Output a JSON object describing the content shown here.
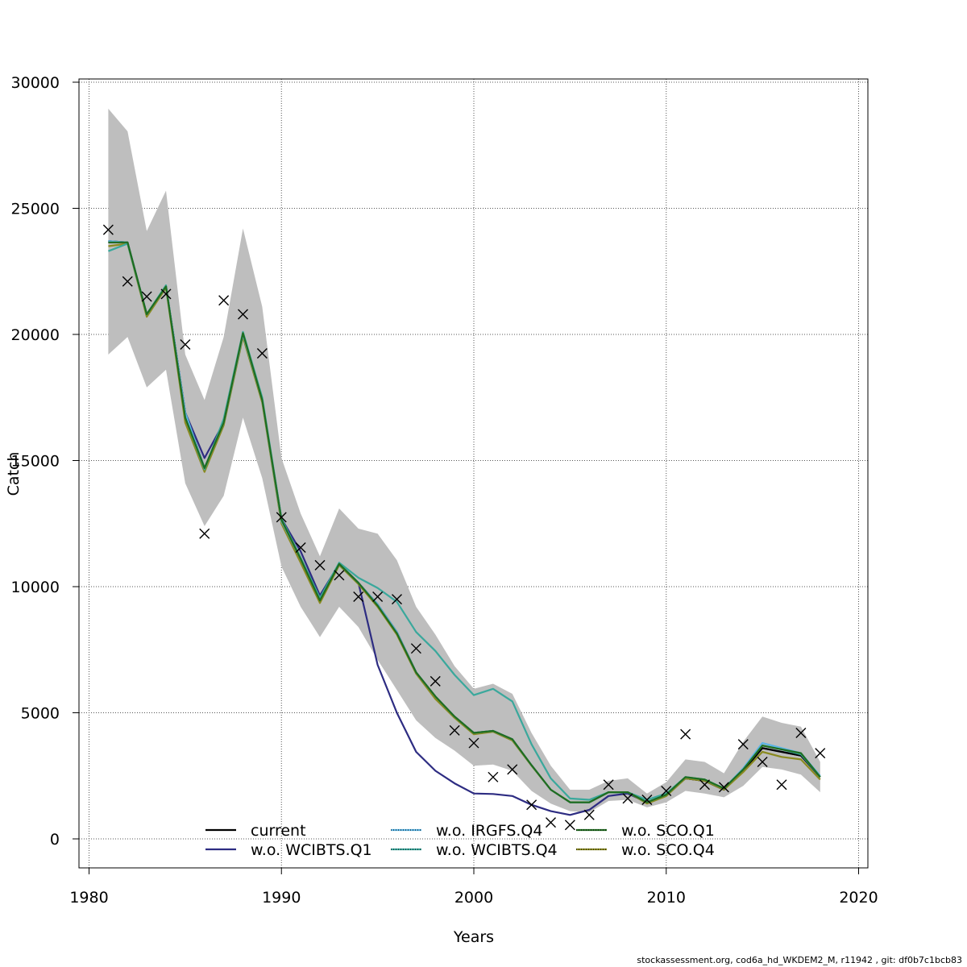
{
  "chart_data": {
    "type": "line",
    "title": "",
    "xlabel": "Years",
    "ylabel": "Catch",
    "xlim": [
      1980,
      2020
    ],
    "ylim": [
      0,
      30000
    ],
    "xticks": [
      1980,
      1990,
      2000,
      2010,
      2020
    ],
    "yticks": [
      0,
      5000,
      10000,
      15000,
      20000,
      25000,
      30000
    ],
    "grid": true,
    "legend_placement": "bottom",
    "x": [
      1981,
      1982,
      1983,
      1984,
      1985,
      1986,
      1987,
      1988,
      1989,
      1990,
      1991,
      1992,
      1993,
      1994,
      1995,
      1996,
      1997,
      1998,
      1999,
      2000,
      2001,
      2002,
      2003,
      2004,
      2005,
      2006,
      2007,
      2008,
      2009,
      2010,
      2011,
      2012,
      2013,
      2014,
      2015,
      2016,
      2017,
      2018
    ],
    "confidence_band": {
      "color": "#bebebe",
      "lower": [
        19200,
        19900,
        17900,
        18600,
        14100,
        12400,
        13600,
        16700,
        14300,
        10800,
        9200,
        8000,
        9200,
        8400,
        7100,
        5900,
        4700,
        4000,
        3500,
        2900,
        2950,
        2700,
        1900,
        1400,
        1100,
        1050,
        1500,
        1550,
        1250,
        1450,
        1900,
        1800,
        1650,
        2100,
        2850,
        2750,
        2550,
        1850
      ],
      "upper": [
        28950,
        28050,
        24100,
        25700,
        19200,
        17400,
        19900,
        24200,
        21100,
        15100,
        12900,
        11200,
        13100,
        12300,
        12100,
        11050,
        9200,
        8100,
        6850,
        5950,
        6150,
        5750,
        4200,
        2900,
        1950,
        1950,
        2300,
        2400,
        1800,
        2250,
        3150,
        3050,
        2600,
        3850,
        4850,
        4600,
        4450,
        3050
      ]
    },
    "series": [
      {
        "name": "current",
        "color": "#000000",
        "dash": "solid",
        "values": [
          23700,
          23650,
          20800,
          21900,
          16900,
          14700,
          16500,
          20000,
          17400,
          12600,
          11100,
          9500,
          10900,
          10150,
          9300,
          8200,
          6600,
          5650,
          4850,
          4200,
          4280,
          3950,
          2920,
          1950,
          1450,
          1450,
          1850,
          1850,
          1450,
          1750,
          2400,
          2300,
          1950,
          2700,
          3600,
          3450,
          3300,
          2450
        ]
      },
      {
        "name": "w.o. WCIBTS.Q1",
        "color": "#2d2c82",
        "dash": "solid",
        "values": [
          23650,
          23650,
          20800,
          21900,
          16900,
          15100,
          16500,
          20000,
          17400,
          12700,
          11400,
          9650,
          10900,
          10150,
          6900,
          5000,
          3450,
          2700,
          2200,
          1800,
          1780,
          1700,
          1350,
          1100,
          950,
          1150,
          1700,
          1800,
          1450,
          1750,
          2400,
          2300,
          1950,
          2700,
          3600,
          3450,
          3300,
          2450
        ]
      },
      {
        "name": "w.o. IRGFS.Q4",
        "color": "#5ab4e5",
        "dash": "dotted",
        "values": [
          23700,
          23650,
          20800,
          21900,
          16900,
          14700,
          16500,
          20000,
          17400,
          12600,
          11100,
          9500,
          10900,
          10150,
          9300,
          8200,
          6600,
          5650,
          4850,
          4200,
          4280,
          3950,
          2920,
          1950,
          1450,
          1450,
          1850,
          1850,
          1450,
          1750,
          2450,
          2350,
          2000,
          2800,
          3800,
          3600,
          3400,
          2500
        ]
      },
      {
        "name": "w.o. WCIBTS.Q4",
        "color": "#3aa89c",
        "dash": "dotted",
        "values": [
          23300,
          23600,
          20800,
          21950,
          16700,
          14650,
          16650,
          20100,
          17500,
          12700,
          11150,
          9550,
          10950,
          10350,
          9950,
          9400,
          8200,
          7450,
          6500,
          5700,
          5950,
          5450,
          3750,
          2400,
          1600,
          1550,
          1850,
          1850,
          1550,
          1800,
          2450,
          2350,
          2000,
          2750,
          3700,
          3550,
          3350,
          2450
        ]
      },
      {
        "name": "w.o. SCO.Q1",
        "color": "#1f6d1f",
        "dash": "dotted",
        "values": [
          23650,
          23650,
          20800,
          21900,
          16700,
          14700,
          16500,
          20050,
          17400,
          12650,
          11100,
          9450,
          10900,
          10150,
          9250,
          8150,
          6600,
          5650,
          4850,
          4200,
          4280,
          3950,
          2920,
          1950,
          1450,
          1450,
          1850,
          1850,
          1450,
          1750,
          2450,
          2350,
          2000,
          2750,
          3700,
          3550,
          3400,
          2450
        ]
      },
      {
        "name": "w.o. SCO.Q4",
        "color": "#8a8a20",
        "dash": "dotted",
        "values": [
          23500,
          23600,
          20700,
          21850,
          16500,
          14550,
          16400,
          19900,
          17300,
          12500,
          10950,
          9350,
          10850,
          10100,
          9200,
          8100,
          6550,
          5550,
          4800,
          4150,
          4250,
          3900,
          2900,
          1950,
          1450,
          1450,
          1850,
          1850,
          1400,
          1700,
          2400,
          2300,
          1950,
          2650,
          3450,
          3250,
          3150,
          2350
        ]
      }
    ],
    "observations": {
      "marker": "x",
      "values": [
        24150,
        22100,
        21500,
        21600,
        19600,
        12100,
        21350,
        20800,
        19250,
        12750,
        11550,
        10850,
        10450,
        9600,
        9600,
        9500,
        7550,
        6250,
        4300,
        3800,
        2450,
        2750,
        1350,
        650,
        550,
        950,
        2150,
        1600,
        1550,
        1900,
        4150,
        2150,
        2050,
        3750,
        3050,
        2150,
        4200,
        3400
      ]
    },
    "legend": {
      "rows": [
        [
          "current",
          "w.o. IRGFS.Q4",
          "w.o. SCO.Q1"
        ],
        [
          "w.o. WCIBTS.Q1",
          "w.o. WCIBTS.Q4",
          "w.o. SCO.Q4"
        ]
      ]
    }
  },
  "footer_text": "stockassessment.org, cod6a_hd_WKDEM2_M, r11942 , git: df0b7c1bcb83"
}
